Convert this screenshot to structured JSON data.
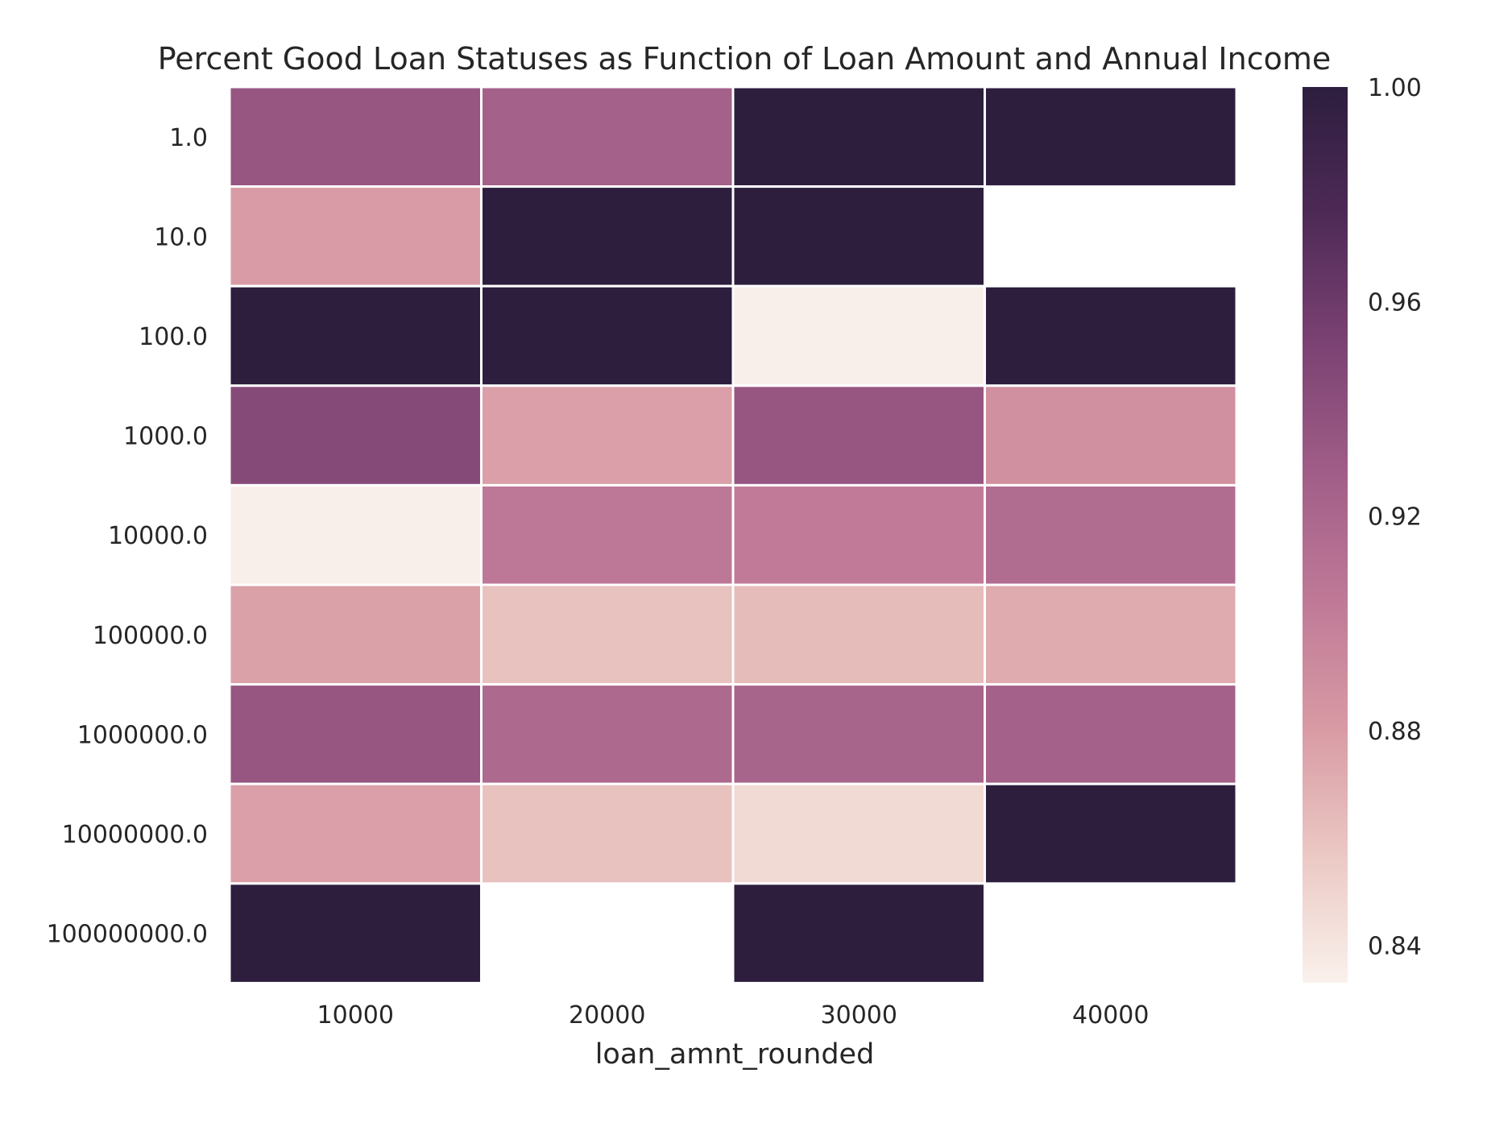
{
  "chart_data": {
    "type": "heatmap",
    "title": "Percent Good Loan Statuses as Function of Loan Amount and Annual Income",
    "xlabel": "loan_amnt_rounded",
    "ylabel": "",
    "x_categories": [
      "10000",
      "20000",
      "30000",
      "40000"
    ],
    "y_categories": [
      "1.0",
      "10.0",
      "100.0",
      "1000.0",
      "10000.0",
      "100000.0",
      "1000000.0",
      "10000000.0",
      "100000000.0"
    ],
    "values": [
      [
        0.935,
        0.925,
        1.0,
        1.0
      ],
      [
        0.88,
        1.0,
        1.0,
        null
      ],
      [
        1.0,
        1.0,
        0.834,
        1.0
      ],
      [
        0.945,
        0.878,
        0.935,
        0.888
      ],
      [
        0.834,
        0.905,
        0.903,
        0.915
      ],
      [
        0.877,
        0.86,
        0.863,
        0.872
      ],
      [
        0.935,
        0.918,
        0.922,
        0.925
      ],
      [
        0.878,
        0.86,
        0.847,
        1.0
      ],
      [
        1.0,
        null,
        1.0,
        null
      ]
    ],
    "colorbar": {
      "vmin": 0.833,
      "vmax": 1.0,
      "ticks": [
        "0.84",
        "0.88",
        "0.92",
        "0.96",
        "1.00"
      ],
      "tick_values": [
        0.84,
        0.88,
        0.92,
        0.96,
        1.0
      ]
    },
    "colormap": [
      "#faf1ec",
      "#ebc8c3",
      "#d89aa4",
      "#bf7997",
      "#a05d87",
      "#7b4273",
      "#4e2a57",
      "#2d1e3e"
    ],
    "grid": false,
    "legend": "colorbar-right"
  }
}
